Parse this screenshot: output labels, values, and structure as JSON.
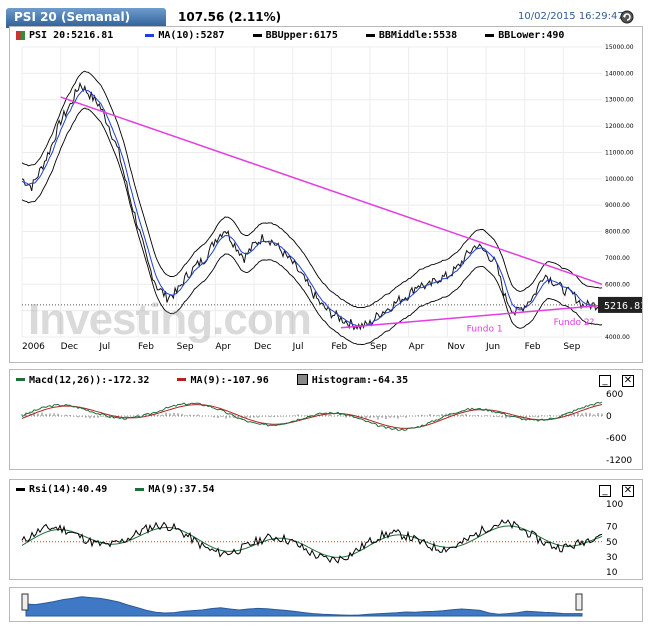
{
  "header": {
    "tab_title": "PSI 20 (Semanal)",
    "price": "107.56 (2.11%)",
    "datetime": "10/02/2015 16:29:47",
    "refresh_icon": "refresh-icon"
  },
  "main_legend": [
    {
      "label": "PSI 20:5216.81",
      "color": "#3a8a3a"
    },
    {
      "label": "MA(10):5287",
      "color": "#1f3fd0"
    },
    {
      "label": "BBUpper:6175",
      "color": "#000000"
    },
    {
      "label": "BBMiddle:5538",
      "color": "#000000"
    },
    {
      "label": "BBLower:490",
      "color": "#000000"
    }
  ],
  "x_labels": [
    "2006",
    "Dec",
    "Jul",
    "Feb",
    "Sep",
    "Apr",
    "Dec",
    "Jul",
    "Feb",
    "Sep",
    "Apr",
    "Nov",
    "Jun",
    "Feb",
    "Sep"
  ],
  "watermark": "Investing.com",
  "price_tag": "5216.81",
  "annotations": {
    "fundo1": "Fundo 1",
    "fundo2": "Fundo 2?"
  },
  "macd": {
    "legend": [
      {
        "label": "Macd(12,26)):-172.32",
        "color": "#1e6e3a"
      },
      {
        "label": "MA(9):-107.96",
        "color": "#b22222"
      },
      {
        "label": "Histogram:-64.35",
        "color": "#888888"
      }
    ],
    "y_labels": [
      "600",
      "0",
      "-600",
      "-1200"
    ]
  },
  "rsi": {
    "legend": [
      {
        "label": "Rsi(14):40.49",
        "color": "#000000"
      },
      {
        "label": "MA(9):37.54",
        "color": "#1e6e3a"
      }
    ],
    "y_labels": [
      "100",
      "70",
      "50",
      "30",
      "10"
    ]
  },
  "colors": {
    "trendline": "#e23ee2",
    "price": "#111111",
    "ma": "#1f3fd0"
  },
  "chart_data": {
    "type": "line",
    "title": "PSI 20 (Semanal)",
    "ylim": [
      4000,
      15000
    ],
    "y_ticks": [
      "15000.00",
      "14000.00",
      "13000.00",
      "12000.00",
      "11000.00",
      "10000.00",
      "9000.00",
      "8000.00",
      "7000.00",
      "6000.00",
      "5000.00",
      "4000.00"
    ],
    "series": [
      {
        "name": "PSI 20",
        "x": [
          0,
          1,
          2,
          3,
          4,
          5,
          6,
          7,
          8,
          9,
          10,
          11,
          12,
          13,
          14,
          15,
          16,
          17,
          18,
          19,
          20,
          21,
          22,
          23,
          24,
          25,
          26,
          27,
          28,
          29,
          30,
          31,
          32,
          33,
          34,
          35,
          36,
          37,
          38,
          39,
          40,
          41,
          42,
          43,
          44,
          45,
          46,
          47,
          48,
          49,
          50,
          51,
          52,
          53,
          54,
          55,
          56,
          57,
          58,
          59,
          60
        ],
        "values": [
          10000,
          9700,
          10400,
          11200,
          12200,
          12800,
          13600,
          13200,
          12800,
          12000,
          11000,
          9500,
          8200,
          6800,
          5900,
          5500,
          5700,
          6300,
          6700,
          7000,
          7700,
          8100,
          7500,
          7000,
          7500,
          7800,
          7600,
          7200,
          6800,
          6300,
          5700,
          5200,
          4900,
          4700,
          4500,
          4400,
          4500,
          4900,
          5100,
          5400,
          5600,
          6000,
          5900,
          6200,
          6300,
          6600,
          7100,
          7500,
          7200,
          6800,
          5500,
          4900,
          5200,
          5600,
          6400,
          6100,
          5800,
          5600,
          5200,
          5216.81,
          5216.81
        ]
      },
      {
        "name": "MA(10)",
        "values_note": ""
      }
    ],
    "trendlines": [
      {
        "from": [
          4,
          13100
        ],
        "to": [
          60,
          6000
        ]
      },
      {
        "from": [
          33,
          4350
        ],
        "to": [
          60,
          5200
        ]
      }
    ]
  }
}
